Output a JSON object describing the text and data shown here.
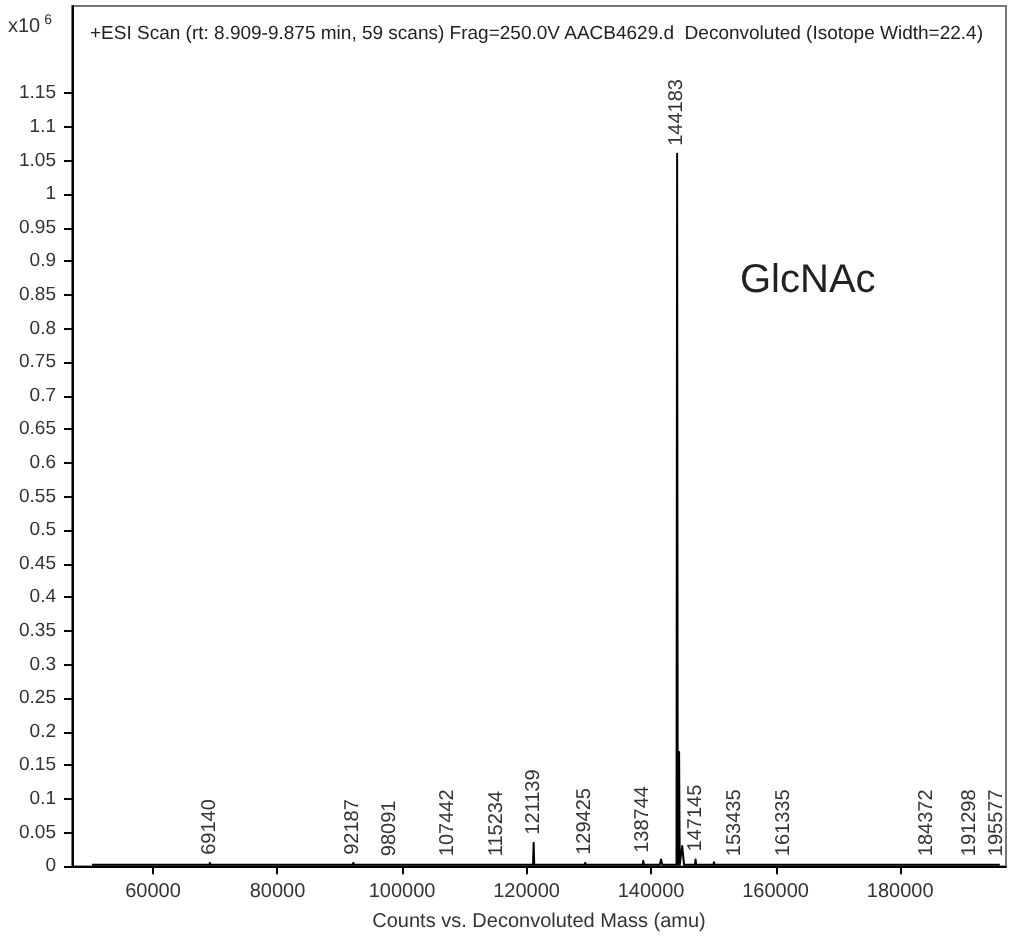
{
  "chart_data": {
    "type": "line",
    "title": "+ESI Scan (rt: 8.909-9.875 min, 59 scans) Frag=250.0V AACB4629.d  Deconvoluted (Isotope Width=22.4)",
    "xlabel": "Counts vs. Deconvoluted Mass (amu)",
    "ylabel": "x10$^{6}$",
    "annotations": [
      "GlcNAc",
      {
        "text": "69140",
        "x": 69140,
        "y": 0.005
      },
      {
        "text": "92187",
        "x": 92187,
        "y": 0.005
      },
      {
        "text": "98091",
        "x": 98091,
        "y": 0.003
      },
      {
        "text": "107442",
        "x": 107442,
        "y": 0.003
      },
      {
        "text": "115234",
        "x": 115234,
        "y": 0.003
      },
      {
        "text": "121139",
        "x": 121139,
        "y": 0.035
      },
      {
        "text": "129425",
        "x": 129425,
        "y": 0.005
      },
      {
        "text": "138744",
        "x": 138744,
        "y": 0.008
      },
      {
        "text": "144183",
        "x": 144183,
        "y": 1.06
      },
      {
        "text": "147145",
        "x": 147145,
        "y": 0.01
      },
      {
        "text": "153435",
        "x": 153435,
        "y": 0.003
      },
      {
        "text": "161335",
        "x": 161335,
        "y": 0.003
      },
      {
        "text": "184372",
        "x": 184372,
        "y": 0.003
      },
      {
        "text": "191298",
        "x": 191298,
        "y": 0.003
      },
      {
        "text": "195577",
        "x": 195577,
        "y": 0.003
      }
    ],
    "series": [
      {
        "color": "#000000",
        "x": [
          50200,
          69040,
          69140,
          69240,
          92087,
          92187,
          92287,
          97991,
          98091,
          98191,
          107342,
          107442,
          107542,
          115134,
          115234,
          115334,
          121039,
          121139,
          121239,
          129325,
          129425,
          129525,
          138644,
          138744,
          138844,
          141400,
          141600,
          141800,
          144083,
          144183,
          144283,
          144400,
          144500,
          144600,
          145000,
          145300,
          147045,
          147145,
          147245,
          150000,
          150100,
          150200,
          153335,
          153435,
          153535,
          161235,
          161335,
          161435,
          184272,
          184372,
          184472,
          191198,
          191298,
          191398,
          195477,
          195577,
          195677,
          196000
        ],
        "values": [
          0.002,
          0.002,
          0.005,
          0.002,
          0.002,
          0.005,
          0.002,
          0.002,
          0.003,
          0.002,
          0.002,
          0.003,
          0.002,
          0.002,
          0.003,
          0.002,
          0.002,
          0.035,
          0.002,
          0.002,
          0.005,
          0.002,
          0.002,
          0.008,
          0.002,
          0.002,
          0.01,
          0.002,
          0.002,
          1.06,
          0.002,
          0.002,
          0.17,
          0.002,
          0.03,
          0.002,
          0.002,
          0.01,
          0.002,
          0.002,
          0.006,
          0.002,
          0.002,
          0.003,
          0.002,
          0.002,
          0.003,
          0.002,
          0.002,
          0.003,
          0.002,
          0.002,
          0.003,
          0.002,
          0.002,
          0.003,
          0.002,
          0.002
        ]
      }
    ],
    "xlim": [
      47000,
      197000
    ],
    "xticks": [
      60000,
      80000,
      100000,
      120000,
      140000,
      160000,
      180000
    ],
    "ylim": [
      0,
      1.28
    ],
    "yticks": [
      0,
      0.05,
      0.1,
      0.15,
      0.2,
      0.25,
      0.3,
      0.35,
      0.4,
      0.45,
      0.5,
      0.55,
      0.6,
      0.65,
      0.7,
      0.75,
      0.8,
      0.85,
      0.9,
      0.95,
      1,
      1.05,
      1.1,
      1.15
    ],
    "grid": false,
    "marker": "none",
    "line_style": "solid"
  }
}
